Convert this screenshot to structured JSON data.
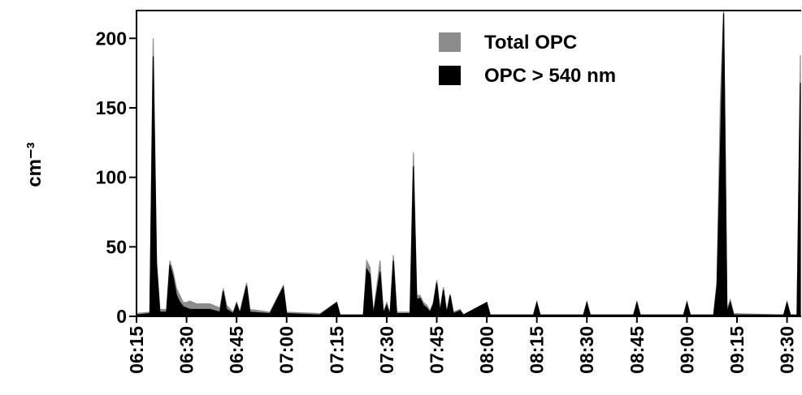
{
  "chart_data": {
    "type": "area",
    "y_label": "cm⁻³",
    "x": [
      "06:15",
      "06:19",
      "06:20",
      "06:21",
      "06:22",
      "06:24",
      "06:25",
      "06:26",
      "06:27",
      "06:28",
      "06:29",
      "06:30",
      "06:31",
      "06:33",
      "06:37",
      "06:40",
      "06:41",
      "06:42",
      "06:44",
      "06:45",
      "06:46",
      "06:48",
      "06:49",
      "06:55",
      "06:59",
      "07:00",
      "07:10",
      "07:15",
      "07:16",
      "07:23",
      "07:24",
      "07:25",
      "07:26",
      "07:28",
      "07:29",
      "07:30",
      "07:31",
      "07:32",
      "07:33",
      "07:37",
      "07:38",
      "07:39",
      "07:40",
      "07:41",
      "07:42",
      "07:43",
      "07:44",
      "07:45",
      "07:46",
      "07:47",
      "07:48",
      "07:49",
      "07:50",
      "07:52",
      "07:53",
      "08:00",
      "08:01",
      "08:14",
      "08:15",
      "08:16",
      "08:29",
      "08:30",
      "08:31",
      "08:44",
      "08:45",
      "08:46",
      "08:59",
      "09:00",
      "09:01",
      "09:08",
      "09:09",
      "09:10",
      "09:11",
      "09:12",
      "09:13",
      "09:14",
      "09:29",
      "09:30",
      "09:31",
      "09:33",
      "09:34"
    ],
    "series": [
      {
        "name": "Total OPC",
        "color": "#8c8c8c",
        "values": [
          2,
          3,
          200,
          40,
          5,
          5,
          40,
          32,
          20,
          15,
          10,
          10,
          11,
          9,
          9,
          6,
          20,
          8,
          3,
          10,
          3,
          24,
          5,
          3,
          22,
          3,
          2,
          10,
          1,
          1,
          40,
          35,
          2,
          40,
          3,
          10,
          2,
          44,
          3,
          3,
          118,
          15,
          15,
          10,
          8,
          4,
          10,
          26,
          5,
          21,
          3,
          16,
          3,
          5,
          1,
          10,
          1,
          1,
          10,
          1,
          1,
          10,
          1,
          1,
          10,
          1,
          1,
          10,
          1,
          1,
          25,
          155,
          220,
          5,
          12,
          2,
          1,
          10,
          1,
          1,
          188
        ]
      },
      {
        "name": "OPC > 540 nm",
        "color": "#000000",
        "values": [
          1,
          2,
          187,
          38,
          3,
          3,
          37,
          28,
          15,
          10,
          7,
          6,
          5,
          5,
          5,
          3,
          18,
          5,
          2,
          9,
          2,
          22,
          3,
          2,
          21,
          2,
          1,
          10,
          1,
          1,
          34,
          30,
          1,
          32,
          2,
          8,
          1,
          40,
          2,
          2,
          108,
          12,
          13,
          8,
          6,
          3,
          9,
          24,
          3,
          19,
          2,
          15,
          2,
          4,
          1,
          10,
          1,
          1,
          10,
          1,
          1,
          10,
          1,
          1,
          10,
          1,
          1,
          10,
          1,
          1,
          22,
          118,
          218,
          3,
          10,
          1,
          1,
          10,
          1,
          1,
          168
        ]
      }
    ],
    "xlim": [
      "06:15",
      "09:34"
    ],
    "xticks": [
      "06:15",
      "06:30",
      "06:45",
      "07:00",
      "07:15",
      "07:30",
      "07:45",
      "08:00",
      "08:15",
      "08:30",
      "08:45",
      "09:00",
      "09:15",
      "09:30"
    ],
    "ylim": [
      0,
      220
    ],
    "yticks": [
      0,
      50,
      100,
      150,
      200
    ],
    "legend": "top-right"
  }
}
